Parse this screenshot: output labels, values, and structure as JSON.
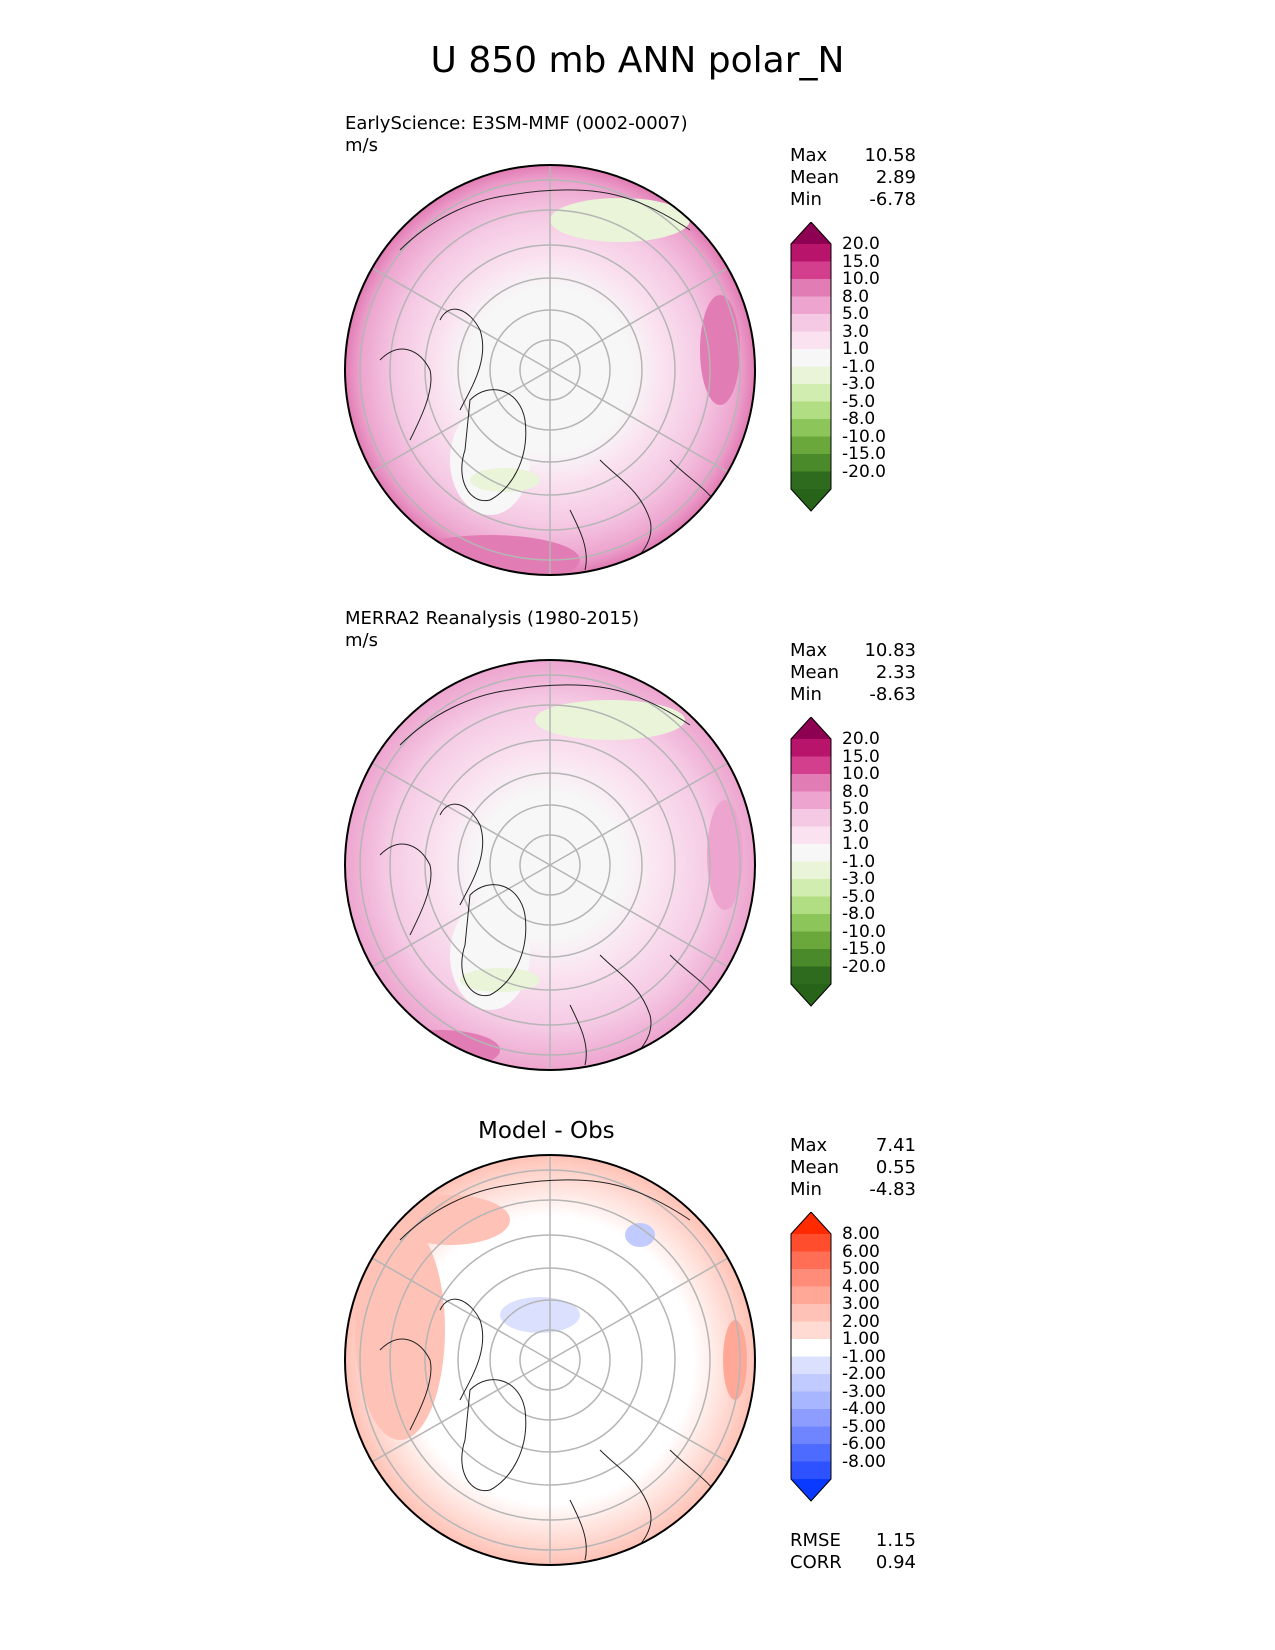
{
  "title": "U 850 mb ANN polar_N",
  "panels": [
    {
      "title": "EarlyScience: E3SM-MMF (0002-0007)",
      "units": "m/s",
      "stats": [
        {
          "label": "Max",
          "value": "10.58"
        },
        {
          "label": "Mean",
          "value": "2.89"
        },
        {
          "label": "Min",
          "value": "-6.78"
        }
      ],
      "colorbar": {
        "levels": [
          "20.0",
          "15.0",
          "10.0",
          "8.0",
          "5.0",
          "3.0",
          "1.0",
          "-1.0",
          "-3.0",
          "-5.0",
          "-8.0",
          "-10.0",
          "-15.0",
          "-20.0"
        ],
        "colors": [
          "#8e0152",
          "#b8146b",
          "#d33f8d",
          "#e27cb4",
          "#eda5cf",
          "#f5c9e4",
          "#fae2f0",
          "#f7f7f7",
          "#e9f4d8",
          "#d2edb0",
          "#b1dd83",
          "#8cc65a",
          "#6aa83c",
          "#4a8a2b",
          "#2f6b1e",
          "#276419"
        ]
      }
    },
    {
      "title": "MERRA2 Reanalysis (1980-2015)",
      "units": "m/s",
      "stats": [
        {
          "label": "Max",
          "value": "10.83"
        },
        {
          "label": "Mean",
          "value": "2.33"
        },
        {
          "label": "Min",
          "value": "-8.63"
        }
      ],
      "colorbar": {
        "levels": [
          "20.0",
          "15.0",
          "10.0",
          "8.0",
          "5.0",
          "3.0",
          "1.0",
          "-1.0",
          "-3.0",
          "-5.0",
          "-8.0",
          "-10.0",
          "-15.0",
          "-20.0"
        ],
        "colors": [
          "#8e0152",
          "#b8146b",
          "#d33f8d",
          "#e27cb4",
          "#eda5cf",
          "#f5c9e4",
          "#fae2f0",
          "#f7f7f7",
          "#e9f4d8",
          "#d2edb0",
          "#b1dd83",
          "#8cc65a",
          "#6aa83c",
          "#4a8a2b",
          "#2f6b1e",
          "#276419"
        ]
      }
    },
    {
      "title": "Model - Obs",
      "stats": [
        {
          "label": "Max",
          "value": "7.41"
        },
        {
          "label": "Mean",
          "value": "0.55"
        },
        {
          "label": "Min",
          "value": "-4.83"
        }
      ],
      "colorbar": {
        "levels": [
          "8.00",
          "6.00",
          "5.00",
          "4.00",
          "3.00",
          "2.00",
          "1.00",
          "-1.00",
          "-2.00",
          "-3.00",
          "-4.00",
          "-5.00",
          "-6.00",
          "-8.00"
        ],
        "colors": [
          "#ff2a00",
          "#ff4d2e",
          "#ff6e55",
          "#ff8c78",
          "#ffa898",
          "#ffc2b6",
          "#ffdbd4",
          "#ffffff",
          "#dbe0ff",
          "#c2cbff",
          "#a8b5ff",
          "#8c9dff",
          "#6e85ff",
          "#4d6cff",
          "#2e52ff",
          "#0a3aff"
        ]
      },
      "metrics": [
        {
          "label": "RMSE",
          "value": "1.15"
        },
        {
          "label": "CORR",
          "value": "0.94"
        }
      ]
    }
  ],
  "chart_data": {
    "type": "heatmap",
    "projection": "north polar stereographic",
    "title": "U 850 mb ANN polar_N",
    "maps": [
      {
        "name": "EarlyScience: E3SM-MMF (0002-0007)",
        "units": "m/s",
        "max": 10.58,
        "mean": 2.89,
        "min": -6.78
      },
      {
        "name": "MERRA2 Reanalysis (1980-2015)",
        "units": "m/s",
        "max": 10.83,
        "mean": 2.33,
        "min": -8.63
      },
      {
        "name": "Model - Obs",
        "max": 7.41,
        "mean": 0.55,
        "min": -4.83,
        "rmse": 1.15,
        "corr": 0.94
      }
    ]
  }
}
